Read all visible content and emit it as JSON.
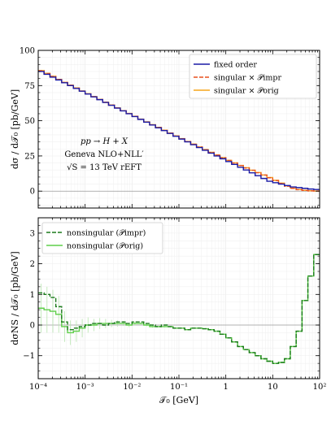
{
  "chart_data": [
    {
      "type": "line",
      "panel": "top",
      "ylabel": "dσ / d𝒯₀   [pb/GeV]",
      "xscale": "log",
      "xlim": [
        0.0001,
        100
      ],
      "ylim": [
        -12,
        100
      ],
      "yticks": [
        "0",
        "25",
        "50",
        "75",
        "100"
      ],
      "grid": true,
      "legend_position": "top-right",
      "annotation": [
        "pp → H + X",
        "Geneva NLO+NLL′",
        "√S = 13 TeV    rEFT"
      ],
      "x_edges": [
        0.0001,
        0.000133,
        0.000178,
        0.000237,
        0.000316,
        0.000422,
        0.000562,
        0.00075,
        0.001,
        0.00133,
        0.00178,
        0.00237,
        0.00316,
        0.00422,
        0.00562,
        0.0075,
        0.01,
        0.0133,
        0.0178,
        0.0237,
        0.0316,
        0.0422,
        0.0562,
        0.075,
        0.1,
        0.133,
        0.178,
        0.237,
        0.316,
        0.422,
        0.562,
        0.75,
        1,
        1.33,
        1.78,
        2.37,
        3.16,
        4.22,
        5.62,
        7.5,
        10,
        13.3,
        17.8,
        23.7,
        31.6,
        42.2,
        56.2,
        75,
        100
      ],
      "series": [
        {
          "name": "fixed order",
          "color": "#1a1aa6",
          "style": "solid",
          "values": [
            85,
            83,
            81,
            79,
            77,
            75,
            73,
            71,
            69,
            67,
            65,
            63,
            61,
            59,
            57,
            55,
            53,
            51,
            49,
            47,
            45,
            43,
            41,
            39,
            37,
            35,
            33,
            31,
            29,
            27,
            25,
            23,
            21,
            19,
            17,
            15,
            13,
            11,
            9,
            7,
            6,
            5,
            4,
            3,
            2.5,
            2,
            1.5,
            1.2
          ]
        },
        {
          "name": "singular × 𝒫impr",
          "color": "#e8501e",
          "style": "dashed",
          "values": [
            85.5,
            83.5,
            81.5,
            79.3,
            77.2,
            75.2,
            73.2,
            71.1,
            69.1,
            67.1,
            65.1,
            63.1,
            61.1,
            59.1,
            57.1,
            55.1,
            53.1,
            51.1,
            49.1,
            47.1,
            45.2,
            43.2,
            41.2,
            39.2,
            37.2,
            35.2,
            33.3,
            31.3,
            29.4,
            27.5,
            25.6,
            23.7,
            21.8,
            20,
            18.2,
            16.5,
            14.8,
            13.1,
            11.4,
            9.5,
            7.5,
            5.5,
            3.5,
            2,
            1,
            0.5,
            0.2,
            0.1
          ]
        },
        {
          "name": "singular × 𝒫orig",
          "color": "#f5a51c",
          "style": "solid",
          "values": [
            85.7,
            83.7,
            81.6,
            79.4,
            77.3,
            75.3,
            73.3,
            71.2,
            69.2,
            67.2,
            65.2,
            63.2,
            61.2,
            59.2,
            57.2,
            55.2,
            53.2,
            51.2,
            49.2,
            47.2,
            45.3,
            43.3,
            41.3,
            39.3,
            37.3,
            35.3,
            33.4,
            31.4,
            29.5,
            27.6,
            25.7,
            23.8,
            21.9,
            20.1,
            18.3,
            16.6,
            14.9,
            13.2,
            11.5,
            9.7,
            7.7,
            5.7,
            3.7,
            2.2,
            1.2,
            0.6,
            0.3,
            0.1
          ]
        }
      ]
    },
    {
      "type": "line",
      "panel": "bottom",
      "xlabel": "𝒯₀   [GeV]",
      "ylabel": "dσNS / d𝒯₀   [pb/GeV]",
      "xscale": "log",
      "xlim": [
        0.0001,
        100
      ],
      "ylim": [
        -1.75,
        3.5
      ],
      "xticks": [
        "10⁻⁴",
        "10⁻³",
        "10⁻²",
        "10⁻¹",
        "1",
        "10",
        "10²"
      ],
      "yticks": [
        "−1",
        "0",
        "1",
        "2",
        "3"
      ],
      "grid": true,
      "legend_position": "top-left",
      "x_edges": [
        0.0001,
        0.000133,
        0.000178,
        0.000237,
        0.000316,
        0.000422,
        0.000562,
        0.00075,
        0.001,
        0.00133,
        0.00178,
        0.00237,
        0.00316,
        0.00422,
        0.00562,
        0.0075,
        0.01,
        0.0133,
        0.0178,
        0.0237,
        0.0316,
        0.0422,
        0.0562,
        0.075,
        0.1,
        0.133,
        0.178,
        0.237,
        0.316,
        0.422,
        0.562,
        0.75,
        1,
        1.33,
        1.78,
        2.37,
        3.16,
        4.22,
        5.62,
        7.5,
        10,
        13.3,
        17.8,
        23.7,
        31.6,
        42.2,
        56.2,
        75,
        100
      ],
      "series": [
        {
          "name": "nonsingular (𝒫impr)",
          "color": "#1a7a1a",
          "style": "dashed",
          "values": [
            1.05,
            1.0,
            0.9,
            0.6,
            0.1,
            -0.15,
            -0.1,
            -0.05,
            0.0,
            0.05,
            0.05,
            0.0,
            0.05,
            0.1,
            0.1,
            0.05,
            0.1,
            0.1,
            0.05,
            0.0,
            -0.05,
            0.0,
            -0.05,
            -0.1,
            -0.1,
            -0.15,
            -0.1,
            -0.1,
            -0.12,
            -0.15,
            -0.2,
            -0.3,
            -0.42,
            -0.55,
            -0.7,
            -0.8,
            -0.9,
            -1.0,
            -1.1,
            -1.18,
            -1.25,
            -1.22,
            -1.1,
            -0.7,
            -0.2,
            0.8,
            1.6,
            2.3
          ]
        },
        {
          "name": "nonsingular (𝒫orig)",
          "color": "#5fcf4a",
          "style": "solid",
          "errors": [
            0.8,
            0.75,
            0.7,
            0.6,
            0.5,
            0.4,
            0.35,
            0.3,
            0.25,
            0.2,
            0.18,
            0.15,
            0.12,
            0.1,
            0.08,
            0.07,
            0.06,
            0.05,
            0.04,
            0.04,
            0.03,
            0.03,
            0.02,
            0.02,
            0.02,
            0.02,
            0.02,
            0.02,
            0.02,
            0.02,
            0.02,
            0.02,
            0.02,
            0.02,
            0.02,
            0.02,
            0.02,
            0.02,
            0.02,
            0.02,
            0.02,
            0.02,
            0.02,
            0.02,
            0.02,
            0.02,
            0.02,
            0.02
          ],
          "values": [
            0.55,
            0.5,
            0.45,
            0.35,
            -0.05,
            -0.25,
            -0.2,
            -0.1,
            0.0,
            0.0,
            0.05,
            0.05,
            0.05,
            0.05,
            0.05,
            0.0,
            0.05,
            0.05,
            0.0,
            -0.05,
            -0.05,
            -0.05,
            -0.05,
            -0.1,
            -0.1,
            -0.15,
            -0.1,
            -0.1,
            -0.12,
            -0.15,
            -0.2,
            -0.3,
            -0.42,
            -0.55,
            -0.7,
            -0.8,
            -0.9,
            -1.0,
            -1.1,
            -1.18,
            -1.25,
            -1.22,
            -1.1,
            -0.7,
            -0.2,
            0.8,
            1.6,
            2.3
          ]
        }
      ]
    }
  ]
}
